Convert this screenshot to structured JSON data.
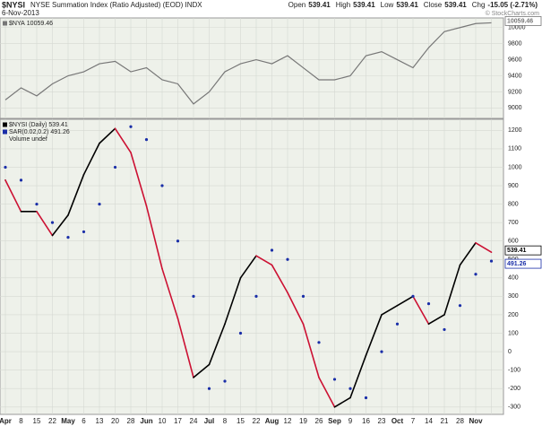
{
  "header": {
    "symbol": "$NYSI",
    "description": "NYSE Summation Index (Ratio Adjusted) (EOD) INDX",
    "date": "6-Nov-2013",
    "copyright": "© StockCharts.com",
    "quote": [
      {
        "label": "Open",
        "value": "539.41"
      },
      {
        "label": "High",
        "value": "539.41"
      },
      {
        "label": "Low",
        "value": "539.41"
      },
      {
        "label": "Close",
        "value": "539.41"
      },
      {
        "label": "Chg",
        "value": "-15.05 (-2.71%)"
      }
    ]
  },
  "chart_data": [
    {
      "type": "line",
      "series": [
        {
          "name": "$NYA",
          "color": "#777777",
          "values": [
            9100,
            9250,
            9150,
            9300,
            9400,
            9450,
            9550,
            9580,
            9450,
            9500,
            9350,
            9300,
            9050,
            9200,
            9450,
            9550,
            9600,
            9550,
            9650,
            9500,
            9350,
            9350,
            9400,
            9650,
            9700,
            9600,
            9500,
            9750,
            9950,
            10000,
            10050,
            10059.46
          ]
        }
      ],
      "ylim": [
        8870,
        10120
      ],
      "yticks": [
        9000,
        9200,
        9400,
        9600,
        9800,
        10000
      ],
      "grid": true
    },
    {
      "type": "line",
      "categories": [
        "Apr",
        "8",
        "15",
        "22",
        "May",
        "6",
        "13",
        "20",
        "28",
        "Jun",
        "10",
        "17",
        "24",
        "Jul",
        "8",
        "15",
        "22",
        "Aug",
        "12",
        "19",
        "26",
        "Sep",
        "9",
        "16",
        "23",
        "Oct",
        "7",
        "14",
        "21",
        "28",
        "Nov",
        null
      ],
      "series": [
        {
          "name": "$NYSI (Daily)",
          "color": "#000000",
          "down_color": "#cc1133",
          "values": [
            930,
            760,
            760,
            630,
            740,
            960,
            1130,
            1210,
            1080,
            790,
            450,
            180,
            -140,
            -70,
            150,
            400,
            520,
            470,
            320,
            150,
            -140,
            -300,
            -250,
            -20,
            200,
            250,
            300,
            150,
            200,
            470,
            590,
            539.41
          ]
        },
        {
          "name": "SAR(0.02,0.2)",
          "color": "#1a2ea8",
          "style": "dots",
          "values": [
            1000,
            930,
            800,
            700,
            620,
            650,
            800,
            1000,
            1220,
            1150,
            900,
            600,
            300,
            -200,
            -160,
            100,
            300,
            550,
            500,
            300,
            50,
            -150,
            -200,
            -250,
            0,
            150,
            300,
            260,
            120,
            250,
            420,
            491.26
          ]
        }
      ],
      "legend_note": "Volume undef",
      "ylim": [
        -340,
        1260
      ],
      "yticks": [
        -300,
        -200,
        -100,
        0,
        100,
        200,
        300,
        400,
        500,
        600,
        700,
        800,
        900,
        1000,
        1100,
        1200
      ],
      "grid": true
    }
  ]
}
